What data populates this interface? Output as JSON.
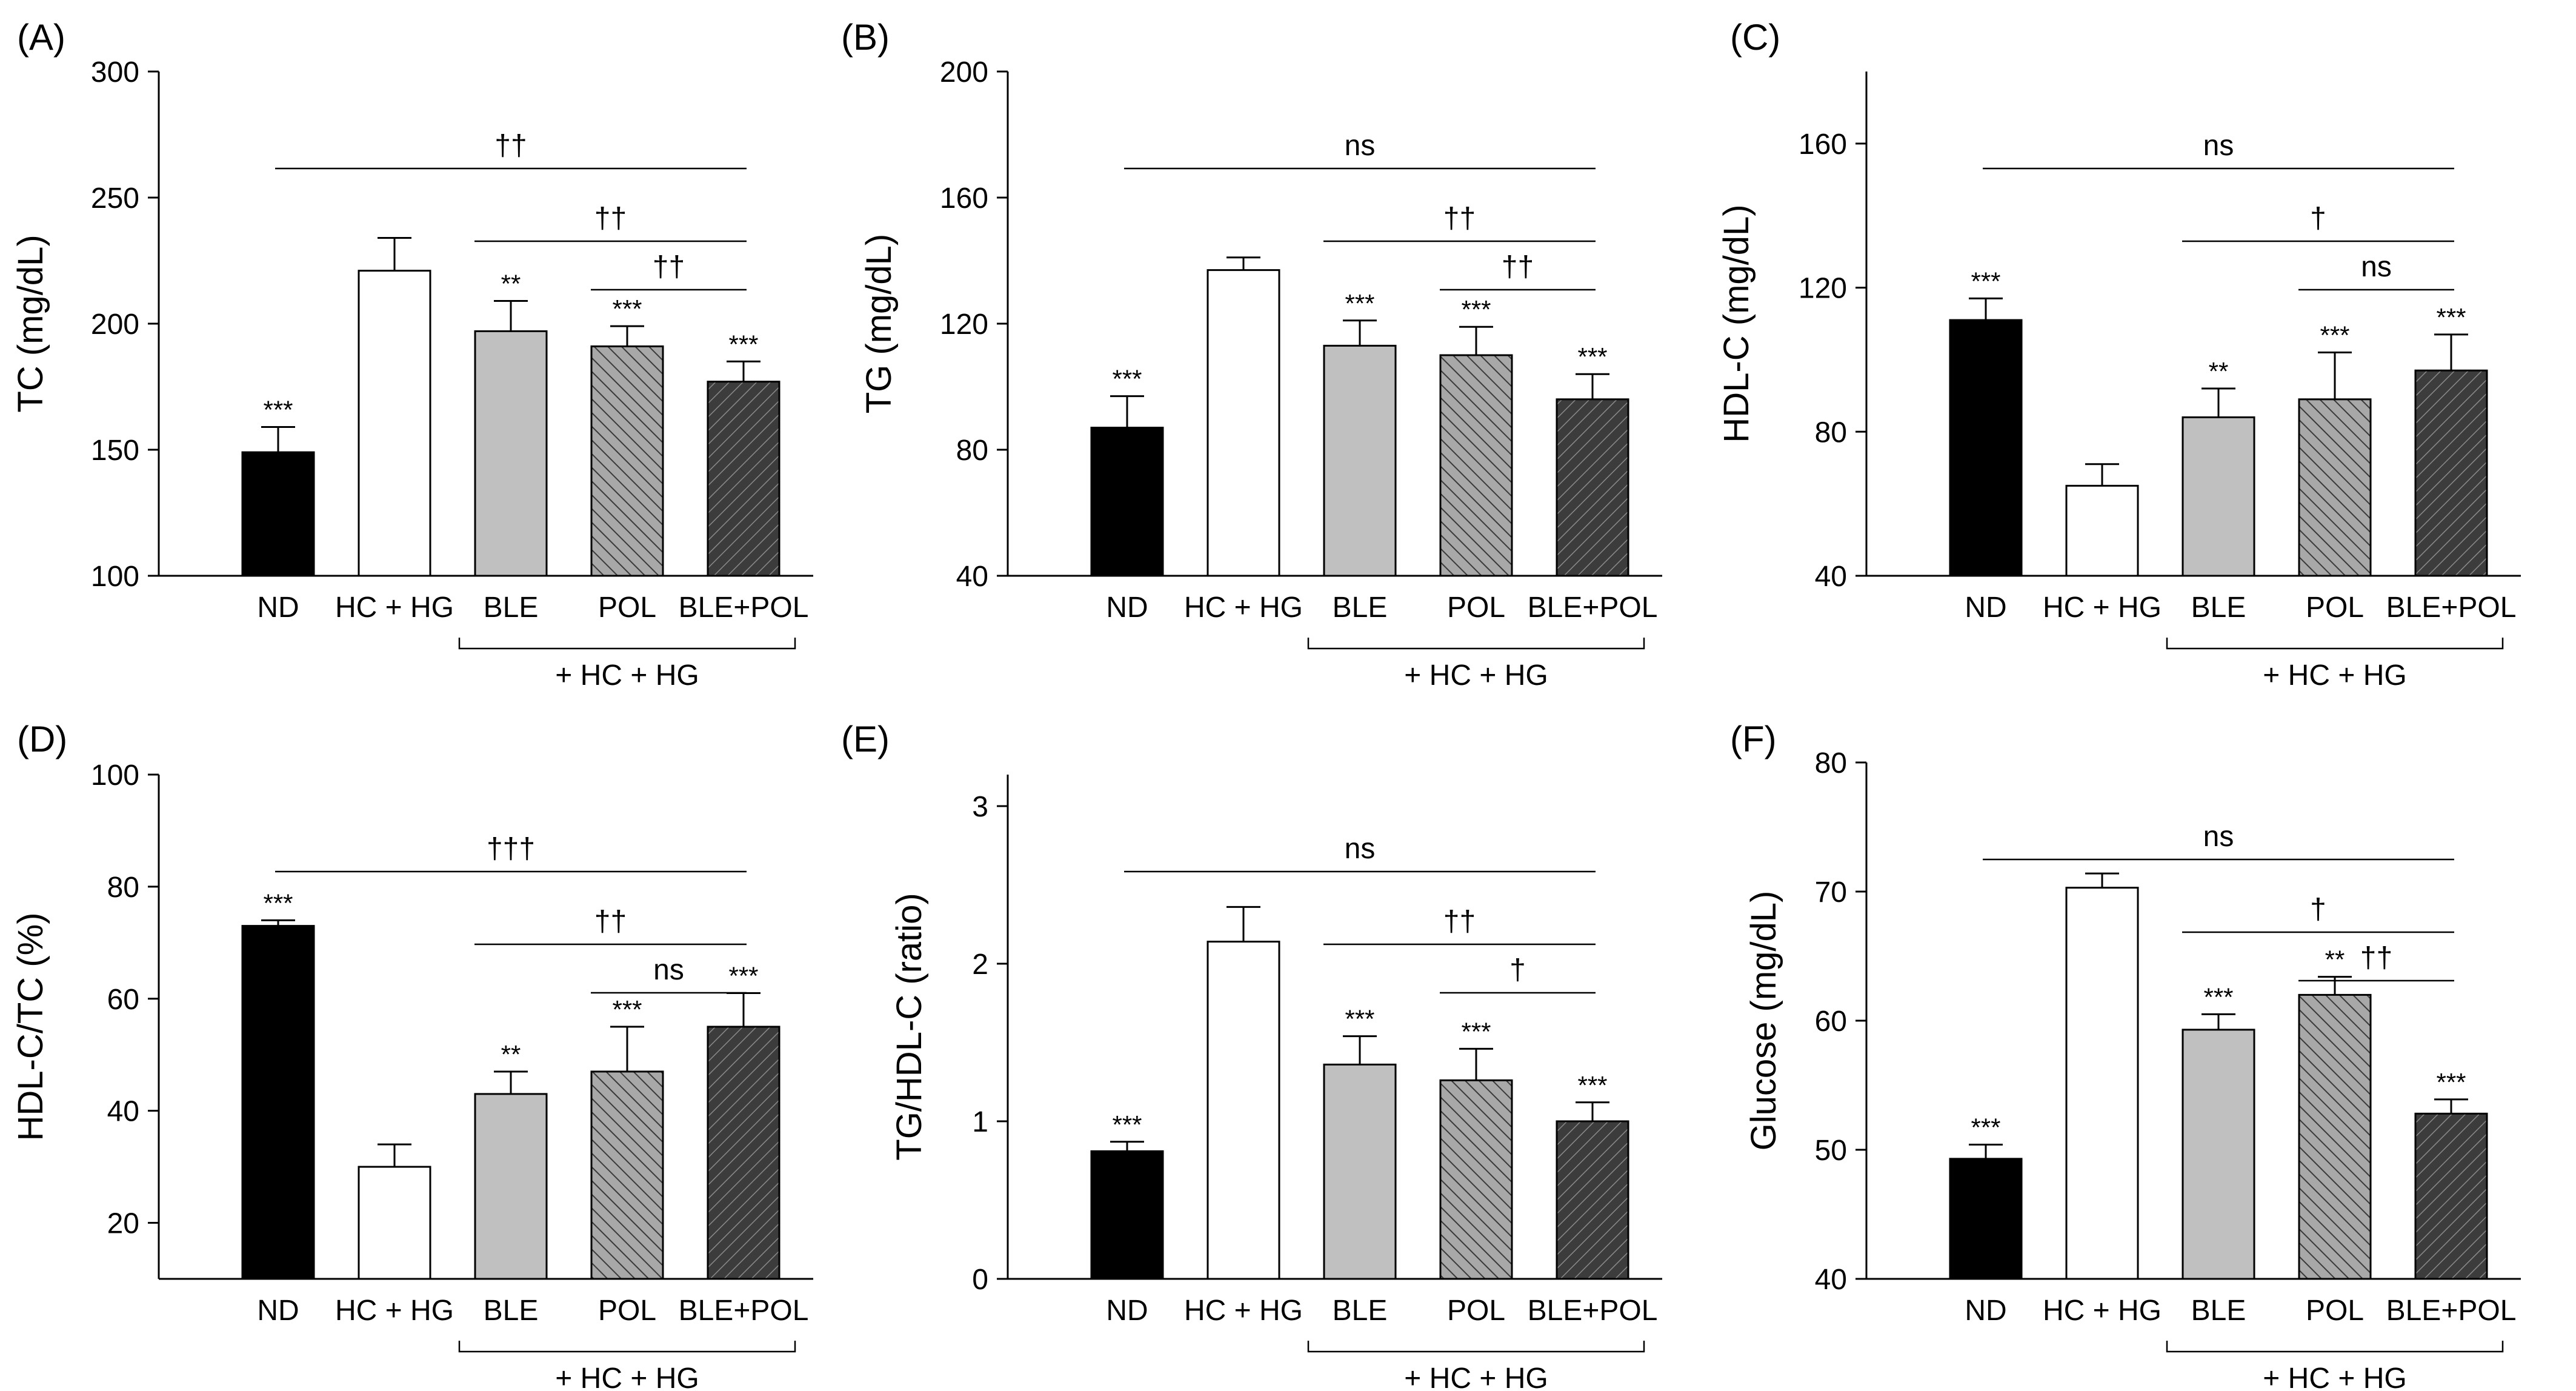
{
  "figure": {
    "panels_label": "six bar-chart panels",
    "group_label": "+ HC + HG"
  },
  "chart_data": [
    {
      "type": "bar",
      "panel_label": "(A)",
      "ylabel": "TC (mg/dL)",
      "ylim": [
        100,
        300
      ],
      "yticks": [
        100,
        150,
        200,
        250,
        300
      ],
      "categories": [
        "ND",
        "HC + HG",
        "BLE",
        "POL",
        "BLE+POL"
      ],
      "values": [
        149,
        221,
        197,
        191,
        177
      ],
      "errors": [
        10,
        13,
        12,
        8,
        8
      ],
      "stars": [
        "***",
        "",
        "**",
        "***",
        "***"
      ],
      "fills": [
        "black",
        "white",
        "lightgray",
        "hatch-light",
        "hatch-dark"
      ],
      "brackets": [
        {
          "from": 0,
          "to": 4,
          "level": 0,
          "label": "††"
        },
        {
          "from": 2,
          "to": 4,
          "level": 1,
          "label": "††"
        },
        {
          "from": 3,
          "to": 4,
          "level": 2,
          "label": "††"
        }
      ]
    },
    {
      "type": "bar",
      "panel_label": "(B)",
      "ylabel": "TG (mg/dL)",
      "ylim": [
        40,
        200
      ],
      "yticks": [
        40,
        80,
        120,
        160,
        200
      ],
      "categories": [
        "ND",
        "HC + HG",
        "BLE",
        "POL",
        "BLE+POL"
      ],
      "values": [
        87,
        137,
        113,
        110,
        96
      ],
      "errors": [
        10,
        4,
        8,
        9,
        8
      ],
      "stars": [
        "***",
        "",
        "***",
        "***",
        "***"
      ],
      "fills": [
        "black",
        "white",
        "lightgray",
        "hatch-light",
        "hatch-dark"
      ],
      "brackets": [
        {
          "from": 0,
          "to": 4,
          "level": 0,
          "label": "ns"
        },
        {
          "from": 2,
          "to": 4,
          "level": 1,
          "label": "††"
        },
        {
          "from": 3,
          "to": 4,
          "level": 2,
          "label": "††"
        }
      ]
    },
    {
      "type": "bar",
      "panel_label": "(C)",
      "ylabel": "HDL-C (mg/dL)",
      "ylim": [
        40,
        180
      ],
      "yticks": [
        40,
        80,
        120,
        160
      ],
      "categories": [
        "ND",
        "HC + HG",
        "BLE",
        "POL",
        "BLE+POL"
      ],
      "values": [
        111,
        65,
        84,
        89,
        97
      ],
      "errors": [
        6,
        6,
        8,
        13,
        10
      ],
      "stars": [
        "***",
        "",
        "**",
        "***",
        "***"
      ],
      "fills": [
        "black",
        "white",
        "lightgray",
        "hatch-light",
        "hatch-dark"
      ],
      "brackets": [
        {
          "from": 0,
          "to": 4,
          "level": 0,
          "label": "ns"
        },
        {
          "from": 2,
          "to": 4,
          "level": 1,
          "label": "†"
        },
        {
          "from": 3,
          "to": 4,
          "level": 2,
          "label": "ns"
        }
      ]
    },
    {
      "type": "bar",
      "panel_label": "(D)",
      "ylabel": "HDL-C/TC (%)",
      "ylim": [
        10,
        100
      ],
      "yticks": [
        20,
        40,
        60,
        80,
        100
      ],
      "categories": [
        "ND",
        "HC + HG",
        "BLE",
        "POL",
        "BLE+POL"
      ],
      "values": [
        73,
        30,
        43,
        47,
        55
      ],
      "errors": [
        1,
        4,
        4,
        8,
        6
      ],
      "stars": [
        "***",
        "",
        "**",
        "***",
        "***"
      ],
      "fills": [
        "black",
        "white",
        "lightgray",
        "hatch-light",
        "hatch-dark"
      ],
      "brackets": [
        {
          "from": 0,
          "to": 4,
          "level": 0,
          "label": "†††"
        },
        {
          "from": 2,
          "to": 4,
          "level": 1,
          "label": "††"
        },
        {
          "from": 3,
          "to": 4,
          "level": 2,
          "label": "ns"
        }
      ]
    },
    {
      "type": "bar",
      "panel_label": "(E)",
      "ylabel": "TG/HDL-C (ratio)",
      "ylim": [
        0,
        3.2
      ],
      "yticks": [
        0,
        1,
        2,
        3
      ],
      "categories": [
        "ND",
        "HC + HG",
        "BLE",
        "POL",
        "BLE+POL"
      ],
      "values": [
        0.81,
        2.14,
        1.36,
        1.26,
        1.0
      ],
      "errors": [
        0.06,
        0.22,
        0.18,
        0.2,
        0.12
      ],
      "stars": [
        "***",
        "",
        "***",
        "***",
        "***"
      ],
      "fills": [
        "black",
        "white",
        "lightgray",
        "hatch-light",
        "hatch-dark"
      ],
      "brackets": [
        {
          "from": 0,
          "to": 4,
          "level": 0,
          "label": "ns"
        },
        {
          "from": 2,
          "to": 4,
          "level": 1,
          "label": "††"
        },
        {
          "from": 3,
          "to": 4,
          "level": 2,
          "label": "†"
        }
      ]
    },
    {
      "type": "bar",
      "panel_label": "(F)",
      "ylabel": "Glucose (mg/dL)",
      "ylim": [
        40,
        80
      ],
      "yticks": [
        40,
        50,
        60,
        70,
        80
      ],
      "categories": [
        "ND",
        "HC + HG",
        "BLE",
        "POL",
        "BLE+POL"
      ],
      "values": [
        49.3,
        70.3,
        59.3,
        62.0,
        52.8
      ],
      "errors": [
        1.1,
        1.1,
        1.2,
        1.4,
        1.1
      ],
      "stars": [
        "***",
        "",
        "***",
        "**",
        "***"
      ],
      "fills": [
        "black",
        "white",
        "lightgray",
        "hatch-light",
        "hatch-dark"
      ],
      "brackets": [
        {
          "from": 0,
          "to": 4,
          "level": 0,
          "label": "ns"
        },
        {
          "from": 2,
          "to": 4,
          "level": 1,
          "label": "†"
        },
        {
          "from": 3,
          "to": 4,
          "level": 2,
          "label": "††"
        }
      ]
    }
  ]
}
